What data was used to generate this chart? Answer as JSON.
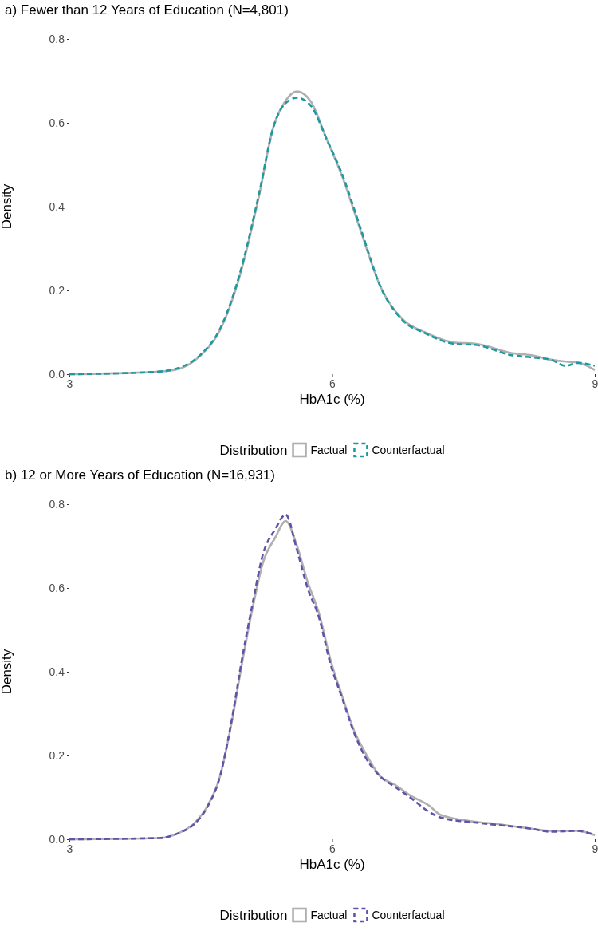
{
  "chart_data": [
    {
      "type": "line",
      "title": "a) Fewer than 12 Years of Education (N=4,801)",
      "xlabel": "HbA1c (%)",
      "ylabel": "Density",
      "legend_title": "Distribution",
      "legend": "bottom",
      "marker": "none",
      "x": [
        3,
        3.94,
        4.2,
        4.5,
        4.72,
        4.94,
        5.16,
        5.33,
        5.46,
        5.6,
        5.76,
        5.94,
        6.11,
        6.33,
        6.55,
        6.81,
        7.06,
        7.41,
        7.63,
        8.06,
        8.28,
        8.49,
        8.67,
        8.8,
        9
      ],
      "series": [
        {
          "name": "Factual",
          "color": "#b0b0b0",
          "line_style": "solid",
          "values": [
            0,
            0.005,
            0.01,
            0.045,
            0.105,
            0.23,
            0.42,
            0.59,
            0.65,
            0.675,
            0.65,
            0.56,
            0.475,
            0.34,
            0.21,
            0.13,
            0.1,
            0.075,
            0.073,
            0.05,
            0.045,
            0.035,
            0.03,
            0.028,
            0.01
          ]
        },
        {
          "name": "Counterfactual",
          "color": "#1b9aa0",
          "line_style": "dashed",
          "values": [
            0,
            0.005,
            0.012,
            0.047,
            0.108,
            0.235,
            0.425,
            0.59,
            0.645,
            0.66,
            0.64,
            0.56,
            0.48,
            0.345,
            0.21,
            0.128,
            0.098,
            0.072,
            0.07,
            0.045,
            0.04,
            0.035,
            0.02,
            0.027,
            0.02
          ]
        }
      ],
      "xlim": [
        3,
        9
      ],
      "xticks": [
        3,
        6,
        9
      ],
      "ylim": [
        0,
        0.8
      ],
      "yticks": [
        {
          "value": 0,
          "label": "0.0"
        },
        0.2,
        0.4,
        0.6,
        0.8
      ],
      "grid": false
    },
    {
      "type": "line",
      "title": "b) 12 or More Years of Education (N=16,931)",
      "xlabel": "HbA1c (%)",
      "ylabel": "Density",
      "legend_title": "Distribution",
      "legend": "bottom",
      "marker": "none",
      "x": [
        3,
        4.03,
        4.25,
        4.42,
        4.57,
        4.72,
        4.85,
        4.98,
        5.09,
        5.21,
        5.35,
        5.47,
        5.6,
        5.72,
        5.85,
        5.98,
        6.11,
        6.26,
        6.37,
        6.55,
        6.72,
        6.89,
        7.11,
        7.24,
        7.63,
        7.85,
        8.28,
        8.49,
        8.8,
        9
      ],
      "series": [
        {
          "name": "Factual",
          "color": "#b0b0b0",
          "line_style": "solid",
          "values": [
            0,
            0.003,
            0.015,
            0.037,
            0.077,
            0.15,
            0.275,
            0.43,
            0.55,
            0.66,
            0.72,
            0.76,
            0.7,
            0.615,
            0.54,
            0.43,
            0.345,
            0.255,
            0.21,
            0.15,
            0.13,
            0.105,
            0.08,
            0.058,
            0.042,
            0.037,
            0.025,
            0.02,
            0.02,
            0.01
          ]
        },
        {
          "name": "Counterfactual",
          "color": "#5e55ab",
          "line_style": "dashed",
          "values": [
            0,
            0.003,
            0.015,
            0.035,
            0.075,
            0.15,
            0.28,
            0.44,
            0.56,
            0.68,
            0.74,
            0.775,
            0.69,
            0.6,
            0.53,
            0.42,
            0.34,
            0.25,
            0.2,
            0.15,
            0.125,
            0.1,
            0.065,
            0.052,
            0.04,
            0.035,
            0.025,
            0.018,
            0.02,
            0.01
          ]
        }
      ],
      "xlim": [
        3,
        9
      ],
      "xticks": [
        3,
        6,
        9
      ],
      "ylim": [
        0,
        0.8
      ],
      "yticks": [
        {
          "value": 0,
          "label": "0.0"
        },
        0.2,
        0.4,
        0.6,
        0.8
      ],
      "grid": false
    }
  ]
}
